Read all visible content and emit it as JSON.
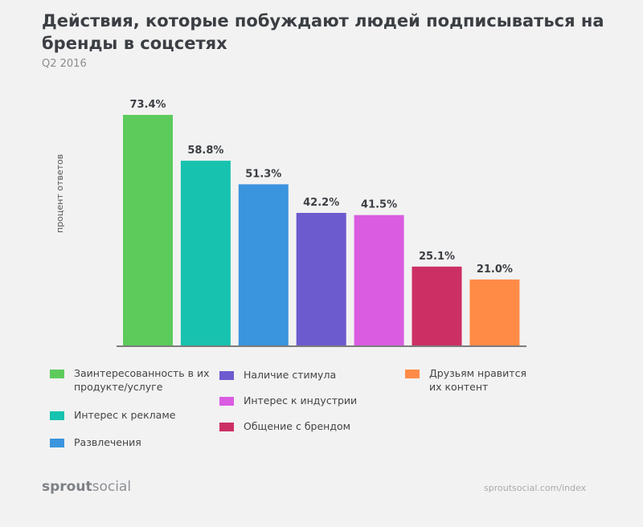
{
  "header": {
    "title": "Действия, которые побуждают людей подписываться на бренды в соцсетях",
    "subtitle": "Q2 2016"
  },
  "chart_data": {
    "type": "bar",
    "title": "Действия, которые побуждают людей подписываться на бренды в соцсетях",
    "subtitle": "Q2 2016",
    "ylabel": "процент ответов",
    "xlabel": "",
    "ylim": [
      0,
      75
    ],
    "grid": false,
    "legend": "bottom",
    "categories": [
      "Заинтересованность в их продукте/услуге",
      "Интерес к рекламе",
      "Развлечения",
      "Наличие стимула",
      "Интерес к индустрии",
      "Общение с брендом",
      "Друзьям нравится их контент"
    ],
    "values": [
      73.4,
      58.8,
      51.3,
      42.2,
      41.5,
      25.1,
      21.0
    ],
    "labels": [
      "73.4%",
      "58.8%",
      "51.3%",
      "42.2%",
      "41.5%",
      "25.1%",
      "21.0%"
    ],
    "colors": [
      "#5ccb5c",
      "#17c3ae",
      "#3b94de",
      "#6c5bcf",
      "#d95ce1",
      "#cc2f63",
      "#ff8b47"
    ]
  },
  "footer": {
    "brand_bold": "sprout",
    "brand_light": "social",
    "url": "sproutsocial.com/index"
  }
}
